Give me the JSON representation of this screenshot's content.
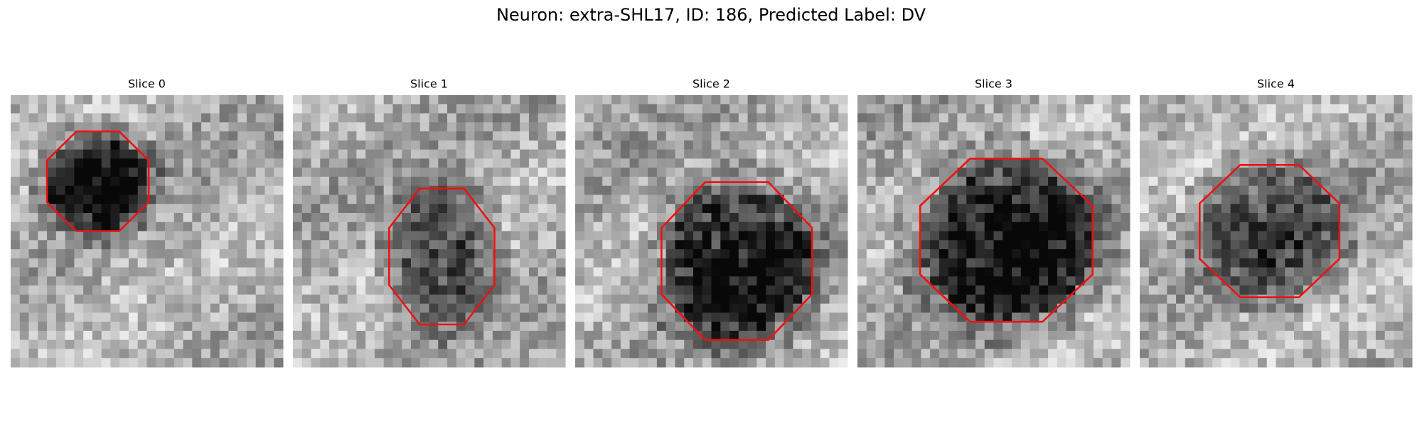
{
  "title": "Neuron: extra-SHL17, ID: 186, Predicted Label: DV",
  "panels": [
    {
      "title": "Slice 0"
    },
    {
      "title": "Slice 1"
    },
    {
      "title": "Slice 2"
    },
    {
      "title": "Slice 3"
    },
    {
      "title": "Slice 4"
    }
  ]
}
